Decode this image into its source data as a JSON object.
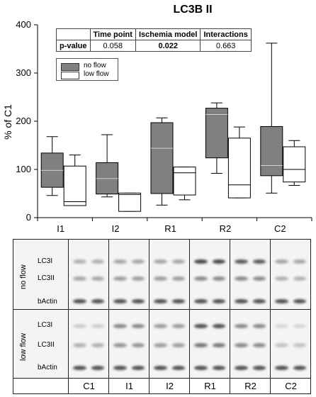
{
  "chart_data": {
    "type": "box",
    "title": "LC3B II",
    "ylabel": "% of C1",
    "xlabel": "",
    "ylim": [
      0,
      400
    ],
    "yticks": [
      0,
      100,
      200,
      300,
      400
    ],
    "categories": [
      "I1",
      "I2",
      "R1",
      "R2",
      "C2"
    ],
    "legend": {
      "placement": "top-left",
      "entries": [
        "no flow",
        "low flow"
      ]
    },
    "series": [
      {
        "name": "no flow",
        "color": "#808080",
        "boxes": [
          {
            "min": 46,
            "q1": 63,
            "median": 98,
            "q3": 134,
            "max": 168
          },
          {
            "min": 43,
            "q1": 49,
            "median": 81,
            "q3": 114,
            "max": 172
          },
          {
            "min": 26,
            "q1": 50,
            "median": 144,
            "q3": 197,
            "max": 207
          },
          {
            "min": 92,
            "q1": 124,
            "median": 214,
            "q3": 227,
            "max": 238
          },
          {
            "min": 51,
            "q1": 87,
            "median": 108,
            "q3": 189,
            "max": 362
          }
        ]
      },
      {
        "name": "low flow",
        "color": "#ffffff",
        "boxes": [
          {
            "min": 25,
            "q1": 25,
            "median": 33,
            "q3": 107,
            "max": 130
          },
          {
            "min": 13,
            "q1": 13,
            "median": 48,
            "q3": 51,
            "max": 51
          },
          {
            "min": 37,
            "q1": 47,
            "median": 93,
            "q3": 105,
            "max": 105
          },
          {
            "min": 41,
            "q1": 41,
            "median": 68,
            "q3": 165,
            "max": 188
          },
          {
            "min": 67,
            "q1": 74,
            "median": 100,
            "q3": 147,
            "max": 160
          }
        ]
      }
    ],
    "pvalue_table": {
      "headers": [
        "Time point",
        "Ischemia model",
        "Interactions"
      ],
      "row_label": "p-value",
      "values": [
        "0.058",
        "0.022",
        "0.663"
      ]
    }
  },
  "blot": {
    "no_flow": {
      "group_label": "no flow",
      "bands": [
        "LC3I",
        "LC3II",
        "bActin"
      ]
    },
    "low_flow": {
      "group_label": "low flow",
      "bands": [
        "LC3I",
        "LC3II",
        "bActin"
      ]
    },
    "lane_labels": [
      "C1",
      "I1",
      "I2",
      "R1",
      "R2",
      "C2"
    ]
  }
}
